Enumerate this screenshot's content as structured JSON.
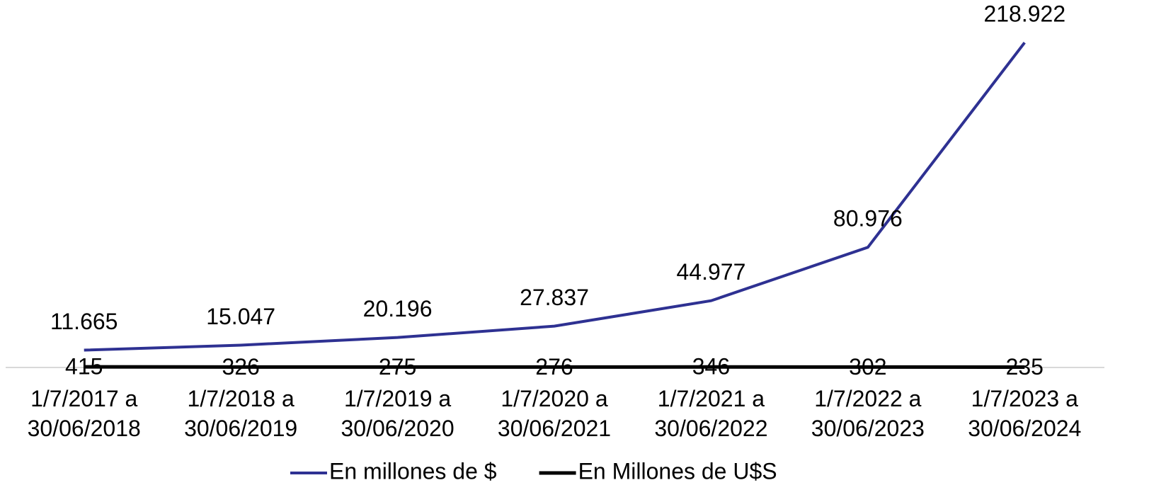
{
  "chart_data": {
    "type": "line",
    "categories": [
      "1/7/2017 a 30/06/2018",
      "1/7/2018 a 30/06/2019",
      "1/7/2019 a 30/06/2020",
      "1/7/2020 a 30/06/2021",
      "1/7/2021 a 30/06/2022",
      "1/7/2022 a 30/06/2023",
      "1/7/2023 a 30/06/2024"
    ],
    "series": [
      {
        "name": "En millones de $",
        "color": "#2e3192",
        "values": [
          11665,
          15047,
          20196,
          27837,
          44977,
          80976,
          218922
        ],
        "value_labels": [
          "11.665",
          "15.047",
          "20.196",
          "27.837",
          "44.977",
          "80.976",
          "218.922"
        ]
      },
      {
        "name": "En Millones de U$S",
        "color": "#000000",
        "values": [
          415,
          326,
          275,
          276,
          346,
          302,
          235
        ]
      }
    ],
    "ylim": [
      0,
      240000
    ],
    "legend": "bottom"
  }
}
